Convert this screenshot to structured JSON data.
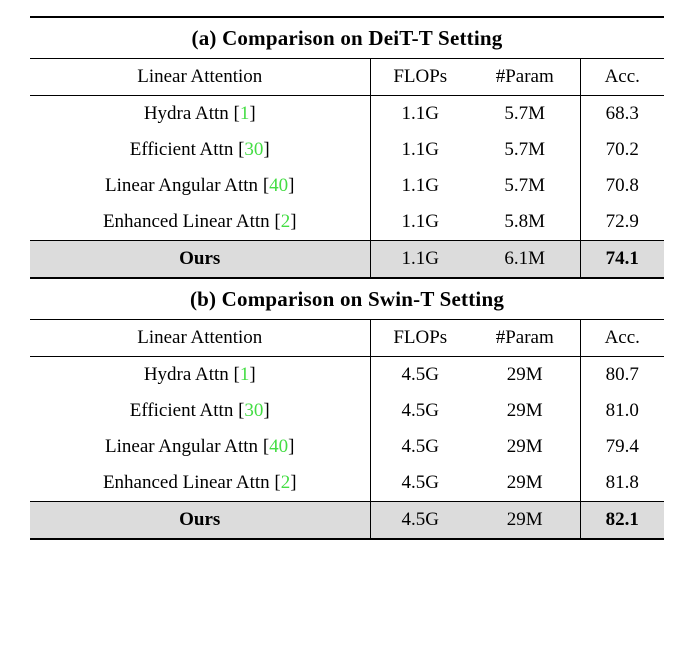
{
  "colors": {
    "citation": "#44dd44",
    "ours_row_bg": "#dcdcdc",
    "rule": "#000000"
  },
  "punct": {
    "cite_open": "[",
    "cite_close": "]"
  },
  "tables": [
    {
      "caption": "(a) Comparison on DeiT-T Setting",
      "headers": [
        "Linear Attention",
        "FLOPs",
        "#Param",
        "Acc."
      ],
      "rows": [
        {
          "method": "Hydra Attn",
          "cite": "1",
          "flops": "1.1G",
          "param": "5.7M",
          "acc": "68.3"
        },
        {
          "method": "Efficient Attn",
          "cite": "30",
          "flops": "1.1G",
          "param": "5.7M",
          "acc": "70.2"
        },
        {
          "method": "Linear Angular Attn",
          "cite": "40",
          "flops": "1.1G",
          "param": "5.7M",
          "acc": "70.8"
        },
        {
          "method": "Enhanced Linear Attn",
          "cite": "2",
          "flops": "1.1G",
          "param": "5.8M",
          "acc": "72.9"
        }
      ],
      "ours": {
        "method": "Ours",
        "flops": "1.1G",
        "param": "6.1M",
        "acc": "74.1"
      }
    },
    {
      "caption": "(b) Comparison on Swin-T Setting",
      "headers": [
        "Linear Attention",
        "FLOPs",
        "#Param",
        "Acc."
      ],
      "rows": [
        {
          "method": "Hydra Attn",
          "cite": "1",
          "flops": "4.5G",
          "param": "29M",
          "acc": "80.7"
        },
        {
          "method": "Efficient Attn",
          "cite": "30",
          "flops": "4.5G",
          "param": "29M",
          "acc": "81.0"
        },
        {
          "method": "Linear Angular Attn",
          "cite": "40",
          "flops": "4.5G",
          "param": "29M",
          "acc": "79.4"
        },
        {
          "method": "Enhanced Linear Attn",
          "cite": "2",
          "flops": "4.5G",
          "param": "29M",
          "acc": "81.8"
        }
      ],
      "ours": {
        "method": "Ours",
        "flops": "4.5G",
        "param": "29M",
        "acc": "82.1"
      }
    }
  ]
}
